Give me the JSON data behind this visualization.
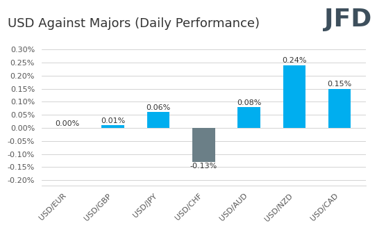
{
  "title": "USD Against Majors (Daily Performance)",
  "categories": [
    "USD/EUR",
    "USD/GBP",
    "USD/JPY",
    "USD/CHF",
    "USD/AUD",
    "USD/NZD",
    "USD/CAD"
  ],
  "values": [
    0.0,
    0.0001,
    0.0006,
    -0.0013,
    0.0008,
    0.0024,
    0.0015
  ],
  "labels": [
    "0.00%",
    "0.01%",
    "0.06%",
    "-0.13%",
    "0.08%",
    "0.24%",
    "0.15%"
  ],
  "bar_colors": [
    "#00AEEF",
    "#00AEEF",
    "#00AEEF",
    "#6B7F87",
    "#00AEEF",
    "#00AEEF",
    "#00AEEF"
  ],
  "ylim": [
    -0.0022,
    0.0034
  ],
  "yticks": [
    -0.002,
    -0.0015,
    -0.001,
    -0.0005,
    0.0,
    0.0005,
    0.001,
    0.0015,
    0.002,
    0.0025,
    0.003
  ],
  "ytick_labels": [
    "-0.20%",
    "-0.15%",
    "-0.10%",
    "-0.05%",
    "0.00%",
    "0.05%",
    "0.10%",
    "0.15%",
    "0.20%",
    "0.25%",
    "0.30%"
  ],
  "background_color": "#FFFFFF",
  "grid_color": "#CCCCCC",
  "title_fontsize": 13,
  "tick_fontsize": 8,
  "label_fontsize": 8,
  "bar_width": 0.5,
  "jfd_color": "#3D4F5C"
}
